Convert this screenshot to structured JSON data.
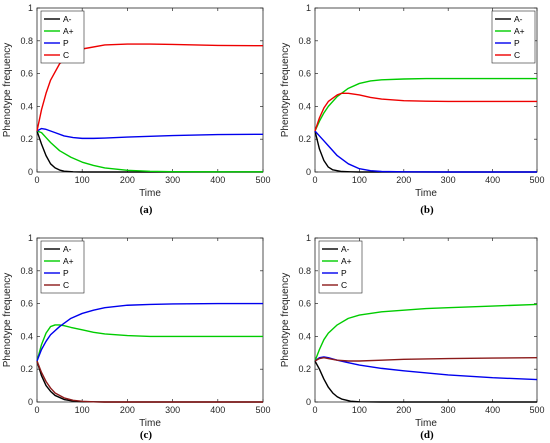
{
  "chart_data": [
    {
      "type": "line",
      "panel_label": "(a)",
      "xlabel": "Time",
      "ylabel": "Phenotype frequency",
      "xlim": [
        0,
        500
      ],
      "ylim": [
        0,
        1
      ],
      "xticks": [
        0,
        100,
        200,
        300,
        400,
        500
      ],
      "yticks": [
        0,
        0.2,
        0.4,
        0.6,
        0.8,
        1
      ],
      "ytick_labels": [
        "0",
        "0.2",
        "0.4",
        "0.6",
        "0.8",
        "1"
      ],
      "legend_position": "top-left",
      "series": [
        {
          "name": "A-",
          "color": "#000000",
          "x": [
            0,
            10,
            20,
            30,
            40,
            50,
            60,
            80,
            100,
            150,
            500
          ],
          "y": [
            0.25,
            0.17,
            0.1,
            0.05,
            0.025,
            0.012,
            0.005,
            0.001,
            0,
            0,
            0
          ]
        },
        {
          "name": "A+",
          "color": "#00cc00",
          "x": [
            0,
            10,
            20,
            30,
            50,
            75,
            100,
            125,
            150,
            200,
            250,
            300,
            400,
            500
          ],
          "y": [
            0.25,
            0.24,
            0.21,
            0.18,
            0.13,
            0.09,
            0.06,
            0.04,
            0.025,
            0.01,
            0.004,
            0.002,
            0.001,
            0.001
          ]
        },
        {
          "name": "P",
          "color": "#0000ee",
          "x": [
            0,
            10,
            20,
            40,
            60,
            80,
            100,
            125,
            150,
            200,
            300,
            400,
            500
          ],
          "y": [
            0.25,
            0.265,
            0.26,
            0.24,
            0.22,
            0.21,
            0.205,
            0.205,
            0.207,
            0.213,
            0.222,
            0.228,
            0.23
          ]
        },
        {
          "name": "C",
          "color": "#ee0000",
          "x": [
            0,
            10,
            20,
            30,
            50,
            75,
            100,
            150,
            200,
            250,
            300,
            400,
            500
          ],
          "y": [
            0.25,
            0.38,
            0.48,
            0.56,
            0.66,
            0.72,
            0.75,
            0.775,
            0.78,
            0.78,
            0.778,
            0.772,
            0.77
          ]
        }
      ]
    },
    {
      "type": "line",
      "panel_label": "(b)",
      "xlabel": "Time",
      "ylabel": "Phenotype frequency",
      "xlim": [
        0,
        500
      ],
      "ylim": [
        0,
        1
      ],
      "xticks": [
        0,
        100,
        200,
        300,
        400,
        500
      ],
      "yticks": [
        0,
        0.2,
        0.4,
        0.6,
        0.8,
        1
      ],
      "ytick_labels": [
        "0",
        "0.2",
        "0.4",
        "0.6",
        "0.8",
        "1"
      ],
      "legend_position": "top-right",
      "series": [
        {
          "name": "A-",
          "color": "#000000",
          "x": [
            0,
            10,
            20,
            30,
            40,
            60,
            80,
            100,
            500
          ],
          "y": [
            0.25,
            0.14,
            0.07,
            0.03,
            0.013,
            0.003,
            0.001,
            0,
            0
          ]
        },
        {
          "name": "A+",
          "color": "#00cc00",
          "x": [
            0,
            10,
            20,
            30,
            50,
            75,
            100,
            125,
            150,
            200,
            250,
            300,
            400,
            500
          ],
          "y": [
            0.25,
            0.31,
            0.36,
            0.4,
            0.46,
            0.51,
            0.54,
            0.555,
            0.562,
            0.567,
            0.57,
            0.57,
            0.57,
            0.57
          ]
        },
        {
          "name": "P",
          "color": "#0000ee",
          "x": [
            0,
            10,
            20,
            30,
            50,
            75,
            100,
            125,
            150,
            200,
            300,
            500
          ],
          "y": [
            0.25,
            0.22,
            0.19,
            0.16,
            0.1,
            0.05,
            0.02,
            0.008,
            0.003,
            0.001,
            0,
            0
          ]
        },
        {
          "name": "C",
          "color": "#ee0000",
          "x": [
            0,
            10,
            20,
            30,
            50,
            60,
            75,
            100,
            125,
            150,
            200,
            250,
            300,
            400,
            500
          ],
          "y": [
            0.25,
            0.33,
            0.39,
            0.43,
            0.47,
            0.48,
            0.48,
            0.47,
            0.455,
            0.445,
            0.435,
            0.432,
            0.43,
            0.43,
            0.43
          ]
        }
      ]
    },
    {
      "type": "line",
      "panel_label": "(c)",
      "xlabel": "Time",
      "ylabel": "Phenotype frequency",
      "xlim": [
        0,
        500
      ],
      "ylim": [
        0,
        1
      ],
      "xticks": [
        0,
        100,
        200,
        300,
        400,
        500
      ],
      "yticks": [
        0,
        0.2,
        0.4,
        0.6,
        0.8,
        1
      ],
      "ytick_labels": [
        "0",
        "0.2",
        "0.4",
        "0.6",
        "0.8",
        "1"
      ],
      "legend_position": "top-left",
      "series": [
        {
          "name": "A-",
          "color": "#000000",
          "x": [
            0,
            10,
            20,
            30,
            40,
            60,
            80,
            100,
            125,
            150,
            500
          ],
          "y": [
            0.25,
            0.16,
            0.1,
            0.065,
            0.04,
            0.015,
            0.006,
            0.002,
            0.001,
            0,
            0
          ]
        },
        {
          "name": "A+",
          "color": "#00cc00",
          "x": [
            0,
            10,
            20,
            30,
            40,
            50,
            60,
            75,
            100,
            125,
            150,
            200,
            250,
            300,
            400,
            500
          ],
          "y": [
            0.25,
            0.35,
            0.42,
            0.46,
            0.47,
            0.47,
            0.465,
            0.455,
            0.44,
            0.425,
            0.415,
            0.405,
            0.4,
            0.4,
            0.4,
            0.4
          ]
        },
        {
          "name": "P",
          "color": "#0000ee",
          "x": [
            0,
            10,
            20,
            30,
            50,
            75,
            100,
            125,
            150,
            200,
            250,
            300,
            400,
            500
          ],
          "y": [
            0.25,
            0.32,
            0.37,
            0.41,
            0.46,
            0.51,
            0.54,
            0.56,
            0.575,
            0.59,
            0.595,
            0.598,
            0.6,
            0.6
          ]
        },
        {
          "name": "C",
          "color": "#8b1a1a",
          "x": [
            0,
            10,
            20,
            30,
            40,
            60,
            80,
            100,
            125,
            150,
            200,
            500
          ],
          "y": [
            0.25,
            0.18,
            0.125,
            0.085,
            0.055,
            0.025,
            0.01,
            0.004,
            0.001,
            0,
            0,
            0
          ]
        }
      ]
    },
    {
      "type": "line",
      "panel_label": "(d)",
      "xlabel": "Time",
      "ylabel": "Phenotype frequency",
      "xlim": [
        0,
        500
      ],
      "ylim": [
        0,
        1
      ],
      "xticks": [
        0,
        100,
        200,
        300,
        400,
        500
      ],
      "yticks": [
        0,
        0.2,
        0.4,
        0.6,
        0.8,
        1
      ],
      "ytick_labels": [
        "0",
        "0.2",
        "0.4",
        "0.6",
        "0.8",
        "1"
      ],
      "legend_position": "top-left",
      "series": [
        {
          "name": "A-",
          "color": "#000000",
          "x": [
            0,
            10,
            20,
            30,
            40,
            50,
            60,
            80,
            100,
            150,
            500
          ],
          "y": [
            0.25,
            0.2,
            0.14,
            0.09,
            0.055,
            0.032,
            0.018,
            0.005,
            0.001,
            0,
            0
          ]
        },
        {
          "name": "A+",
          "color": "#00cc00",
          "x": [
            0,
            10,
            20,
            30,
            50,
            75,
            100,
            150,
            200,
            250,
            300,
            400,
            500
          ],
          "y": [
            0.25,
            0.32,
            0.38,
            0.42,
            0.47,
            0.51,
            0.53,
            0.55,
            0.56,
            0.57,
            0.575,
            0.585,
            0.595
          ]
        },
        {
          "name": "P",
          "color": "#0000ee",
          "x": [
            0,
            10,
            20,
            30,
            50,
            75,
            100,
            150,
            200,
            300,
            400,
            500
          ],
          "y": [
            0.25,
            0.27,
            0.275,
            0.27,
            0.255,
            0.24,
            0.225,
            0.205,
            0.19,
            0.165,
            0.148,
            0.137
          ]
        },
        {
          "name": "C",
          "color": "#8b1a1a",
          "x": [
            0,
            10,
            20,
            30,
            50,
            75,
            100,
            150,
            200,
            300,
            400,
            500
          ],
          "y": [
            0.25,
            0.265,
            0.27,
            0.265,
            0.255,
            0.25,
            0.25,
            0.255,
            0.26,
            0.265,
            0.268,
            0.27
          ]
        }
      ]
    }
  ]
}
